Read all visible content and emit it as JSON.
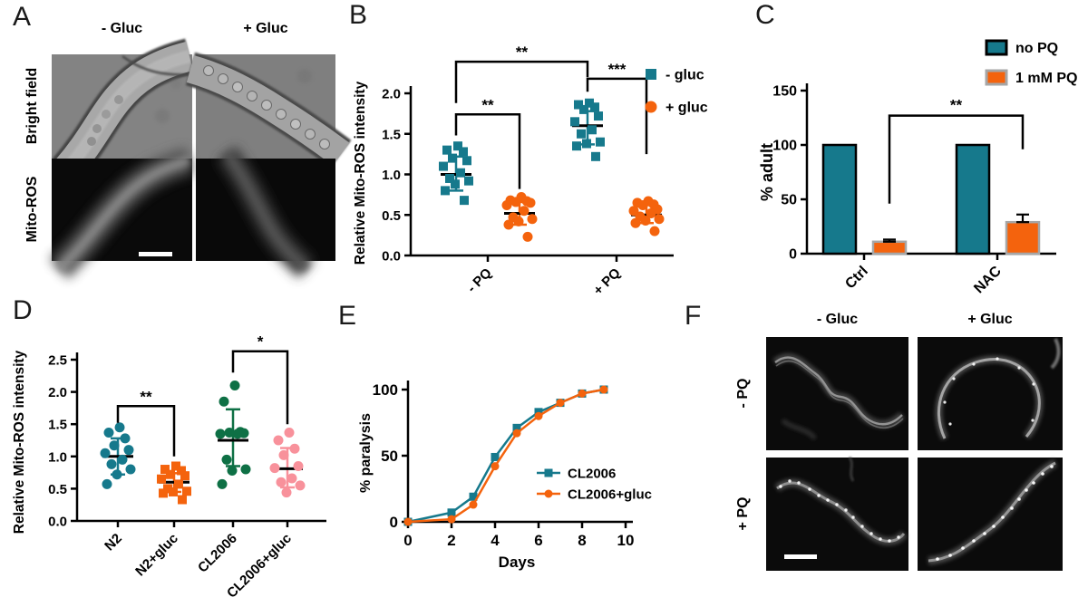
{
  "figure": {
    "panels": {
      "a": {
        "label": "A",
        "col_headers": [
          "- Gluc",
          "+ Gluc"
        ],
        "row_labels": [
          "Bright field",
          "Mito-ROS"
        ]
      },
      "b": {
        "label": "B"
      },
      "c": {
        "label": "C"
      },
      "d": {
        "label": "D"
      },
      "e": {
        "label": "E"
      },
      "f": {
        "label": "F",
        "col_headers": [
          "- Gluc",
          "+ Gluc"
        ],
        "row_labels": [
          "- PQ",
          "+ PQ"
        ]
      }
    }
  },
  "colors": {
    "teal": "#16798c",
    "orange": "#f4630d",
    "green": "#0e7045",
    "pink": "#f8919b"
  },
  "chart_data": [
    {
      "id": "B",
      "type": "scatter",
      "ylabel": "Relative Mito-ROS intensity",
      "ylim": [
        0,
        2.0
      ],
      "yticks": [
        0,
        0.5,
        1.0,
        1.5,
        2.0
      ],
      "yticklabels": [
        "0.0",
        "0.5",
        "1.0",
        "1.5",
        "2.0"
      ],
      "xcategories": [
        "- PQ",
        "+ PQ"
      ],
      "legend": [
        {
          "label": "- gluc",
          "marker": "square",
          "color": "#16798c"
        },
        {
          "label": "+ gluc",
          "marker": "circle",
          "color": "#f4630d"
        }
      ],
      "groups": [
        {
          "category": "- PQ",
          "series": "- gluc",
          "marker": "square",
          "color": "#16798c",
          "mean": 1.0,
          "err_lo": 0.8,
          "err_hi": 1.22,
          "points": [
            1.35,
            1.3,
            1.28,
            1.2,
            1.17,
            1.1,
            1.02,
            0.95,
            0.92,
            0.88,
            0.8,
            0.68
          ]
        },
        {
          "category": "- PQ",
          "series": "+ gluc",
          "marker": "circle",
          "color": "#f4630d",
          "mean": 0.52,
          "err_lo": 0.38,
          "err_hi": 0.66,
          "points": [
            0.72,
            0.68,
            0.67,
            0.66,
            0.65,
            0.62,
            0.55,
            0.47,
            0.45,
            0.42,
            0.38,
            0.23
          ]
        },
        {
          "category": "+ PQ",
          "series": "- gluc",
          "marker": "square",
          "color": "#16798c",
          "mean": 1.6,
          "err_lo": 1.37,
          "err_hi": 1.78,
          "points": [
            1.88,
            1.86,
            1.83,
            1.8,
            1.72,
            1.65,
            1.55,
            1.5,
            1.4,
            1.38,
            1.35,
            1.22
          ]
        },
        {
          "category": "+ PQ",
          "series": "+ gluc",
          "marker": "circle",
          "color": "#f4630d",
          "mean": 0.5,
          "err_lo": 0.4,
          "err_hi": 0.62,
          "points": [
            0.67,
            0.65,
            0.63,
            0.62,
            0.57,
            0.55,
            0.52,
            0.48,
            0.45,
            0.43,
            0.4,
            0.3
          ]
        }
      ],
      "significance": [
        {
          "from": 0,
          "to": 1,
          "label": "**",
          "y": 1.74,
          "d1": 1.48,
          "d2": 0.82
        },
        {
          "from": 2,
          "to": 3,
          "label": "***",
          "y": 2.18,
          "d1": 2.02,
          "d2": 1.25
        },
        {
          "from": 0,
          "to": 2,
          "label": "**",
          "y": 2.39,
          "d1": 1.88,
          "d2": 2.2
        }
      ]
    },
    {
      "id": "C",
      "type": "bar",
      "ylabel": "% adult",
      "ylim": [
        0,
        150
      ],
      "yticks": [
        0,
        50,
        100,
        150
      ],
      "yticklabels": [
        "0",
        "50",
        "100",
        "150"
      ],
      "categories": [
        "Ctrl",
        "NAC"
      ],
      "series": [
        {
          "name": "no PQ",
          "color": "#16798c",
          "border": "#000000",
          "values": [
            100,
            100
          ],
          "errors": [
            0,
            0
          ]
        },
        {
          "name": "1 mM PQ",
          "color": "#f4630d",
          "border": "#a6a6a6",
          "values": [
            11,
            29
          ],
          "errors": [
            2,
            7
          ]
        }
      ],
      "significance": [
        {
          "series": 1,
          "from": 0,
          "to": 1,
          "label": "**",
          "y": 127,
          "d1": 46,
          "d2": 96
        }
      ]
    },
    {
      "id": "D",
      "type": "scatter",
      "ylabel": "Relative Mito-ROS intensity",
      "ylim": [
        0,
        2.5
      ],
      "yticks": [
        0,
        0.5,
        1.0,
        1.5,
        2.0,
        2.5
      ],
      "yticklabels": [
        "0.0",
        "0.5",
        "1.0",
        "1.5",
        "2.0",
        "2.5"
      ],
      "xcategories": [
        "N2",
        "N2+gluc",
        "CL2006",
        "CL2006+gluc"
      ],
      "groups": [
        {
          "category": "N2",
          "marker": "circle",
          "color": "#16798c",
          "mean": 1.0,
          "err_lo": 0.72,
          "err_hi": 1.28,
          "points": [
            1.45,
            1.37,
            1.28,
            1.17,
            1.1,
            1.05,
            0.95,
            0.88,
            0.8,
            0.72,
            0.57
          ]
        },
        {
          "category": "N2+gluc",
          "marker": "square",
          "color": "#f4630d",
          "mean": 0.6,
          "err_lo": 0.45,
          "err_hi": 0.74,
          "points": [
            0.85,
            0.8,
            0.78,
            0.72,
            0.7,
            0.65,
            0.57,
            0.5,
            0.46,
            0.45,
            0.43,
            0.33
          ]
        },
        {
          "category": "CL2006",
          "marker": "circle",
          "color": "#0e7045",
          "mean": 1.25,
          "err_lo": 0.85,
          "err_hi": 1.73,
          "points": [
            2.1,
            1.85,
            1.38,
            1.37,
            1.36,
            1.35,
            1.35,
            0.95,
            0.8,
            0.78,
            0.57
          ]
        },
        {
          "category": "CL2006+gluc",
          "marker": "circle",
          "color": "#f8919b",
          "mean": 0.81,
          "err_lo": 0.52,
          "err_hi": 1.13,
          "points": [
            1.37,
            1.25,
            1.12,
            1.02,
            0.85,
            0.82,
            0.66,
            0.6,
            0.55,
            0.44
          ]
        }
      ],
      "significance": [
        {
          "from": 0,
          "to": 1,
          "label": "**",
          "y": 1.78,
          "d1": 1.52,
          "d2": 1.0
        },
        {
          "from": 2,
          "to": 3,
          "label": "*",
          "y": 2.63,
          "d1": 2.3,
          "d2": 1.5
        }
      ]
    },
    {
      "id": "E",
      "type": "line",
      "ylabel": "% paralysis",
      "xlabel": "Days",
      "xlim": [
        0,
        10
      ],
      "ylim": [
        0,
        100
      ],
      "xticks": [
        0,
        2,
        4,
        6,
        8,
        10
      ],
      "xticklabels": [
        "0",
        "2",
        "4",
        "6",
        "8",
        "10"
      ],
      "yticks": [
        0,
        50,
        100
      ],
      "yticklabels": [
        "0",
        "50",
        "100"
      ],
      "series": [
        {
          "name": "CL2006",
          "marker": "square",
          "color": "#16798c",
          "x": [
            0,
            2,
            3,
            4,
            5,
            6,
            7,
            8,
            9
          ],
          "y": [
            0,
            7,
            19,
            49,
            71,
            83,
            90,
            97,
            100
          ]
        },
        {
          "name": "CL2006+gluc",
          "marker": "circle",
          "color": "#f4630d",
          "x": [
            0,
            2,
            3,
            4,
            5,
            6,
            7,
            8,
            9
          ],
          "y": [
            0,
            2,
            13,
            42,
            67,
            80,
            90,
            97,
            100
          ]
        }
      ]
    }
  ]
}
